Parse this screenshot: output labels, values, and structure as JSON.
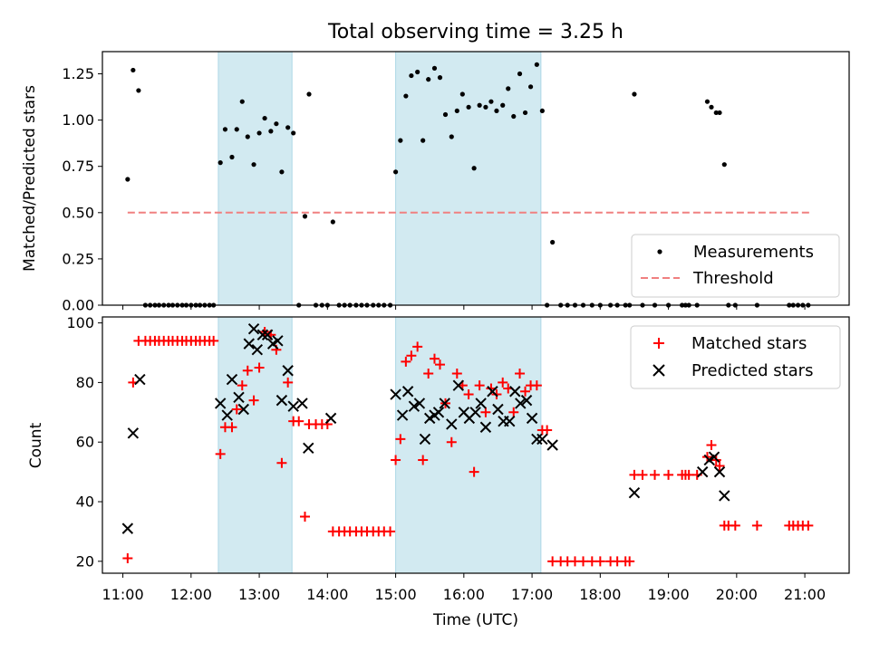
{
  "title": "Total observing time = 3.25 h",
  "xlabel": "Time (UTC)",
  "x_tick_labels": [
    "11:00",
    "12:00",
    "13:00",
    "14:00",
    "15:00",
    "16:00",
    "17:00",
    "18:00",
    "19:00",
    "20:00",
    "21:00"
  ],
  "colors": {
    "shade": "#add8e6",
    "measurement": "#000000",
    "threshold": "#f08080",
    "matched": "#ff0000",
    "predicted": "#000000"
  },
  "chart_data": [
    {
      "type": "scatter",
      "ylabel": "Matched/Predicted stars",
      "xlim": [
        10.7,
        21.65
      ],
      "ylim": [
        0,
        1.37
      ],
      "y_ticks": [
        "0.00",
        "0.25",
        "0.50",
        "0.75",
        "1.00",
        "1.25"
      ],
      "shaded_x_ranges": [
        [
          12.4,
          13.48
        ],
        [
          15.0,
          17.13
        ]
      ],
      "legend": {
        "position": "bottom-right",
        "entries": [
          "Measurements",
          "Threshold"
        ]
      },
      "threshold": {
        "name": "Threshold",
        "y": 0.5,
        "x": [
          11.07,
          21.07
        ],
        "style": "dashed"
      },
      "series": [
        {
          "name": "Measurements",
          "marker": "dot",
          "x": [
            11.07,
            11.15,
            11.23,
            11.33,
            11.4,
            11.47,
            11.53,
            11.6,
            11.67,
            11.73,
            11.8,
            11.87,
            11.93,
            12.0,
            12.07,
            12.13,
            12.2,
            12.27,
            12.33,
            12.43,
            12.5,
            12.6,
            12.67,
            12.75,
            12.83,
            12.92,
            13.0,
            13.08,
            13.17,
            13.25,
            13.33,
            13.42,
            13.5,
            13.58,
            13.67,
            13.73,
            13.83,
            13.92,
            14.0,
            14.08,
            14.17,
            14.25,
            14.33,
            14.42,
            14.5,
            14.58,
            14.67,
            14.75,
            14.83,
            14.92,
            15.0,
            15.07,
            15.15,
            15.23,
            15.32,
            15.4,
            15.48,
            15.57,
            15.65,
            15.73,
            15.82,
            15.9,
            15.98,
            16.07,
            16.15,
            16.23,
            16.32,
            16.4,
            16.48,
            16.57,
            16.65,
            16.73,
            16.82,
            16.9,
            16.98,
            17.07,
            17.15,
            17.22,
            17.3,
            17.42,
            17.52,
            17.63,
            17.75,
            17.88,
            18.0,
            18.15,
            18.25,
            18.37,
            18.43,
            18.5,
            18.62,
            18.8,
            19.0,
            19.2,
            19.25,
            19.3,
            19.42,
            19.57,
            19.63,
            19.7,
            19.75,
            19.82,
            19.88,
            19.98,
            20.3,
            20.77,
            20.83,
            20.9,
            20.97,
            21.05
          ],
          "y": [
            0.68,
            1.27,
            1.16,
            0,
            0,
            0,
            0,
            0,
            0,
            0,
            0,
            0,
            0,
            0,
            0,
            0,
            0,
            0,
            0,
            0.77,
            0.95,
            0.8,
            0.95,
            1.1,
            0.91,
            0.76,
            0.93,
            1.01,
            0.94,
            0.98,
            0.72,
            0.96,
            0.93,
            0,
            0.48,
            1.14,
            0,
            0,
            0,
            0.45,
            0,
            0,
            0,
            0,
            0,
            0,
            0,
            0,
            0,
            0,
            0.72,
            0.89,
            1.13,
            1.24,
            1.26,
            0.89,
            1.22,
            1.28,
            1.23,
            1.03,
            0.91,
            1.05,
            1.14,
            1.07,
            0.74,
            1.08,
            1.07,
            1.1,
            1.05,
            1.08,
            1.17,
            1.02,
            1.25,
            1.04,
            1.18,
            1.3,
            1.05,
            0,
            0.34,
            0,
            0,
            0,
            0,
            0,
            0,
            0,
            0,
            0,
            0,
            1.14,
            0,
            0,
            0,
            0,
            0,
            0,
            0,
            1.1,
            1.07,
            1.04,
            1.04,
            0.76,
            0,
            0,
            0,
            0,
            0,
            0,
            0,
            0
          ]
        }
      ]
    },
    {
      "type": "scatter",
      "ylabel": "Count",
      "xlim": [
        10.7,
        21.65
      ],
      "ylim": [
        16,
        102
      ],
      "y_ticks": [
        "20",
        "40",
        "60",
        "80",
        "100"
      ],
      "shaded_x_ranges": [
        [
          12.4,
          13.48
        ],
        [
          15.0,
          17.13
        ]
      ],
      "legend": {
        "position": "top-right",
        "entries": [
          "Matched stars",
          "Predicted stars"
        ]
      },
      "series": [
        {
          "name": "Matched stars",
          "marker": "plus",
          "x": [
            11.07,
            11.15,
            11.23,
            11.33,
            11.4,
            11.47,
            11.53,
            11.6,
            11.67,
            11.73,
            11.8,
            11.87,
            11.93,
            12.0,
            12.07,
            12.13,
            12.2,
            12.27,
            12.33,
            12.43,
            12.5,
            12.6,
            12.67,
            12.75,
            12.83,
            12.92,
            13.0,
            13.08,
            13.17,
            13.25,
            13.33,
            13.42,
            13.5,
            13.58,
            13.67,
            13.73,
            13.83,
            13.92,
            14.0,
            14.08,
            14.17,
            14.25,
            14.33,
            14.42,
            14.5,
            14.58,
            14.67,
            14.75,
            14.83,
            14.92,
            15.0,
            15.07,
            15.15,
            15.23,
            15.32,
            15.4,
            15.48,
            15.57,
            15.65,
            15.73,
            15.82,
            15.9,
            15.98,
            16.07,
            16.15,
            16.23,
            16.32,
            16.4,
            16.48,
            16.57,
            16.65,
            16.73,
            16.82,
            16.9,
            16.98,
            17.07,
            17.15,
            17.22,
            17.3,
            17.42,
            17.52,
            17.63,
            17.75,
            17.88,
            18.0,
            18.15,
            18.25,
            18.37,
            18.43,
            18.5,
            18.62,
            18.8,
            19.0,
            19.2,
            19.25,
            19.3,
            19.42,
            19.57,
            19.63,
            19.7,
            19.75,
            19.82,
            19.88,
            19.98,
            20.3,
            20.77,
            20.83,
            20.9,
            20.97,
            21.05
          ],
          "y": [
            21,
            80,
            94,
            94,
            94,
            94,
            94,
            94,
            94,
            94,
            94,
            94,
            94,
            94,
            94,
            94,
            94,
            94,
            94,
            56,
            65,
            65,
            71,
            79,
            84,
            74,
            85,
            97,
            96,
            91,
            53,
            80,
            67,
            67,
            35,
            66,
            66,
            66,
            66,
            30,
            30,
            30,
            30,
            30,
            30,
            30,
            30,
            30,
            30,
            30,
            54,
            61,
            87,
            89,
            92,
            54,
            83,
            88,
            86,
            73,
            60,
            83,
            79,
            76,
            50,
            79,
            70,
            78,
            76,
            80,
            78,
            70,
            83,
            77,
            79,
            79,
            64,
            64,
            20,
            20,
            20,
            20,
            20,
            20,
            20,
            20,
            20,
            20,
            20,
            49,
            49,
            49,
            49,
            49,
            49,
            49,
            49,
            55,
            59,
            54,
            52,
            32,
            32,
            32,
            32,
            32,
            32,
            32,
            32,
            32
          ]
        },
        {
          "name": "Predicted stars",
          "marker": "x",
          "x": [
            11.07,
            11.15,
            11.25,
            12.43,
            12.53,
            12.6,
            12.7,
            12.77,
            12.85,
            12.92,
            12.97,
            13.05,
            13.12,
            13.2,
            13.27,
            13.33,
            13.42,
            13.5,
            13.63,
            13.72,
            14.05,
            15.0,
            15.1,
            15.18,
            15.27,
            15.35,
            15.43,
            15.5,
            15.57,
            15.63,
            15.72,
            15.82,
            15.92,
            16.0,
            16.08,
            16.17,
            16.25,
            16.32,
            16.42,
            16.5,
            16.58,
            16.67,
            16.75,
            16.83,
            16.92,
            17.0,
            17.07,
            17.15,
            17.3,
            18.5,
            19.5,
            19.6,
            19.67,
            19.75,
            19.82
          ],
          "y": [
            31,
            63,
            81,
            73,
            69,
            81,
            75,
            71,
            93,
            98,
            91,
            96,
            96,
            93,
            94,
            74,
            84,
            72,
            73,
            58,
            68,
            76,
            69,
            77,
            72,
            73,
            61,
            68,
            69,
            70,
            73,
            66,
            79,
            70,
            68,
            70,
            73,
            65,
            77,
            71,
            67,
            67,
            77,
            73,
            74,
            68,
            61,
            61,
            59,
            43,
            50,
            54,
            55,
            50,
            42
          ]
        }
      ]
    }
  ]
}
